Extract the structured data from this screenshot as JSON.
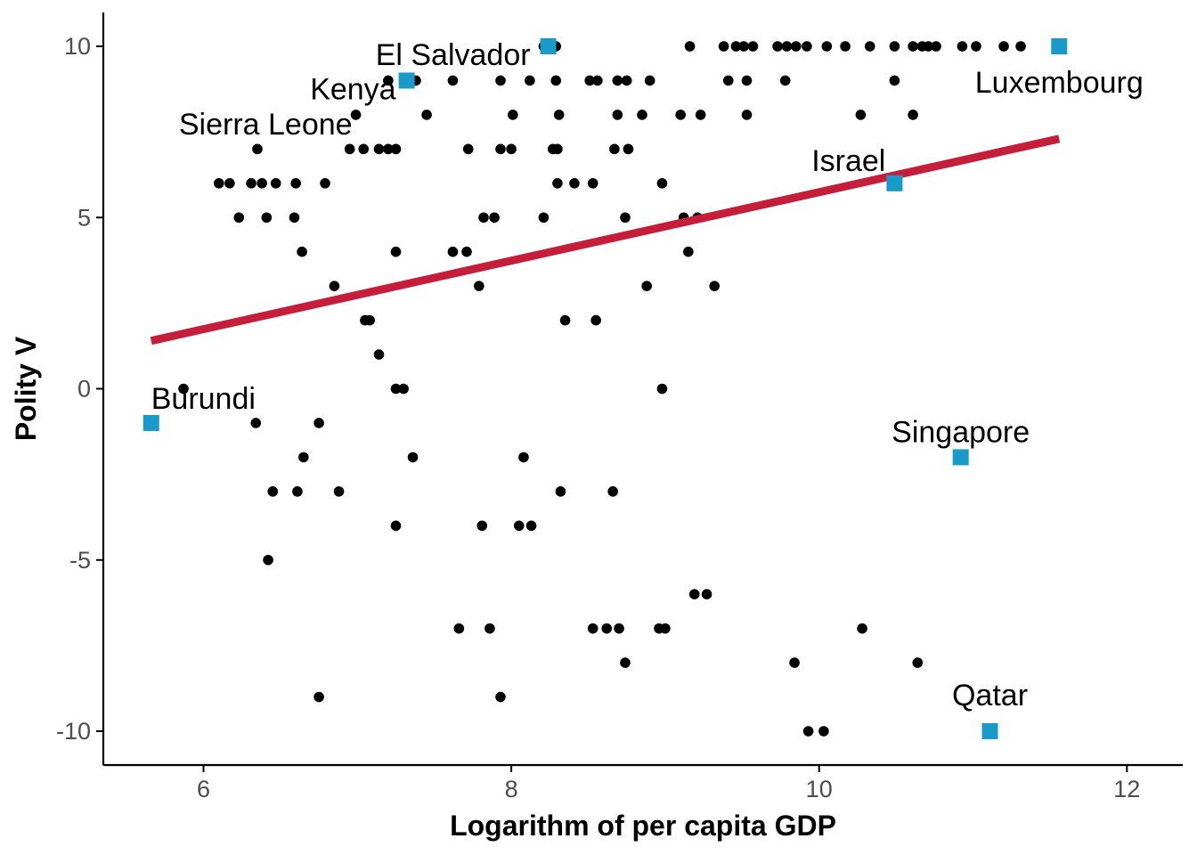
{
  "chart_data": {
    "type": "scatter",
    "title": "",
    "xlabel": "Logarithm of per capita GDP",
    "ylabel": "Polity V",
    "xlim": [
      5.4,
      12.3
    ],
    "ylim": [
      -10.9,
      10.9
    ],
    "x_ticks": [
      6,
      8,
      10,
      12
    ],
    "y_ticks": [
      -10,
      -5,
      0,
      5,
      10
    ],
    "x_tick_labels": [
      "6",
      "8",
      "10",
      "12"
    ],
    "y_tick_labels": [
      "-10",
      "-5",
      "0",
      "5",
      "10"
    ],
    "grid": false,
    "legend": "none",
    "colors": {
      "points": "#000000",
      "highlight": "#1a9ac9",
      "fit_line": "#c41e3a",
      "axis": "#000000",
      "tick_text": "#4d4d4d"
    },
    "fit_line": {
      "x": [
        5.66,
        11.56
      ],
      "y": [
        1.4,
        7.3
      ]
    },
    "highlighted": [
      {
        "name": "Luxembourg",
        "x": 11.56,
        "y": 10
      },
      {
        "name": "El Salvador",
        "x": 8.24,
        "y": 10
      },
      {
        "name": "Kenya",
        "x": 7.32,
        "y": 9
      },
      {
        "name": "Sierra Leone",
        "x": 6.99,
        "y": 8
      },
      {
        "name": "Israel",
        "x": 10.49,
        "y": 6
      },
      {
        "name": "Burundi",
        "x": 5.66,
        "y": -1
      },
      {
        "name": "Singapore",
        "x": 10.92,
        "y": -2
      },
      {
        "name": "Qatar",
        "x": 11.11,
        "y": -10
      }
    ],
    "points": [
      [
        9.16,
        10
      ],
      [
        9.38,
        10
      ],
      [
        9.46,
        10
      ],
      [
        9.51,
        10
      ],
      [
        9.57,
        10
      ],
      [
        9.73,
        10
      ],
      [
        9.79,
        10
      ],
      [
        9.85,
        10
      ],
      [
        9.92,
        10
      ],
      [
        10.05,
        10
      ],
      [
        10.17,
        10
      ],
      [
        10.33,
        10
      ],
      [
        10.49,
        10
      ],
      [
        10.61,
        10
      ],
      [
        10.67,
        10
      ],
      [
        10.71,
        10
      ],
      [
        10.76,
        10
      ],
      [
        10.93,
        10
      ],
      [
        11.02,
        10
      ],
      [
        11.2,
        10
      ],
      [
        11.31,
        10
      ],
      [
        8.21,
        10
      ],
      [
        8.29,
        10
      ],
      [
        7.2,
        9
      ],
      [
        7.38,
        9
      ],
      [
        7.62,
        9
      ],
      [
        7.93,
        9
      ],
      [
        8.12,
        9
      ],
      [
        8.29,
        9
      ],
      [
        8.51,
        9
      ],
      [
        8.56,
        9
      ],
      [
        8.69,
        9
      ],
      [
        8.75,
        9
      ],
      [
        8.9,
        9
      ],
      [
        9.41,
        9
      ],
      [
        9.53,
        9
      ],
      [
        9.78,
        9
      ],
      [
        10.49,
        9
      ],
      [
        6.99,
        8
      ],
      [
        7.45,
        8
      ],
      [
        8.01,
        8
      ],
      [
        8.31,
        8
      ],
      [
        8.69,
        8
      ],
      [
        8.85,
        8
      ],
      [
        9.1,
        8
      ],
      [
        9.23,
        8
      ],
      [
        9.53,
        8
      ],
      [
        10.27,
        8
      ],
      [
        10.61,
        8
      ],
      [
        6.35,
        7
      ],
      [
        6.95,
        7
      ],
      [
        7.04,
        7
      ],
      [
        7.14,
        7
      ],
      [
        7.2,
        7
      ],
      [
        7.25,
        7
      ],
      [
        7.72,
        7
      ],
      [
        7.93,
        7
      ],
      [
        8.0,
        7
      ],
      [
        8.27,
        7
      ],
      [
        8.3,
        7
      ],
      [
        8.67,
        7
      ],
      [
        8.76,
        7
      ],
      [
        6.1,
        6
      ],
      [
        6.17,
        6
      ],
      [
        6.31,
        6
      ],
      [
        6.38,
        6
      ],
      [
        6.47,
        6
      ],
      [
        6.6,
        6
      ],
      [
        6.79,
        6
      ],
      [
        8.3,
        6
      ],
      [
        8.41,
        6
      ],
      [
        8.53,
        6
      ],
      [
        8.98,
        6
      ],
      [
        6.23,
        5
      ],
      [
        6.41,
        5
      ],
      [
        6.59,
        5
      ],
      [
        7.82,
        5
      ],
      [
        7.89,
        5
      ],
      [
        8.21,
        5
      ],
      [
        8.74,
        5
      ],
      [
        9.12,
        5
      ],
      [
        9.21,
        5
      ],
      [
        6.64,
        4
      ],
      [
        7.25,
        4
      ],
      [
        7.62,
        4
      ],
      [
        7.71,
        4
      ],
      [
        9.15,
        4
      ],
      [
        6.85,
        3
      ],
      [
        7.79,
        3
      ],
      [
        8.88,
        3
      ],
      [
        9.32,
        3
      ],
      [
        7.05,
        2
      ],
      [
        7.08,
        2
      ],
      [
        8.35,
        2
      ],
      [
        8.55,
        2
      ],
      [
        7.14,
        1
      ],
      [
        5.87,
        0
      ],
      [
        7.25,
        0
      ],
      [
        7.3,
        0
      ],
      [
        8.98,
        0
      ],
      [
        6.34,
        -1
      ],
      [
        6.75,
        -1
      ],
      [
        6.65,
        -2
      ],
      [
        7.36,
        -2
      ],
      [
        8.08,
        -2
      ],
      [
        6.45,
        -3
      ],
      [
        6.61,
        -3
      ],
      [
        6.88,
        -3
      ],
      [
        8.32,
        -3
      ],
      [
        8.66,
        -3
      ],
      [
        7.25,
        -4
      ],
      [
        7.81,
        -4
      ],
      [
        8.05,
        -4
      ],
      [
        8.13,
        -4
      ],
      [
        6.42,
        -5
      ],
      [
        9.19,
        -6
      ],
      [
        9.27,
        -6
      ],
      [
        7.66,
        -7
      ],
      [
        7.86,
        -7
      ],
      [
        8.53,
        -7
      ],
      [
        8.62,
        -7
      ],
      [
        8.7,
        -7
      ],
      [
        8.96,
        -7
      ],
      [
        9.0,
        -7
      ],
      [
        10.28,
        -7
      ],
      [
        8.74,
        -8
      ],
      [
        9.84,
        -8
      ],
      [
        10.64,
        -8
      ],
      [
        6.75,
        -9
      ],
      [
        7.93,
        -9
      ],
      [
        9.93,
        -10
      ],
      [
        10.03,
        -10
      ]
    ]
  }
}
